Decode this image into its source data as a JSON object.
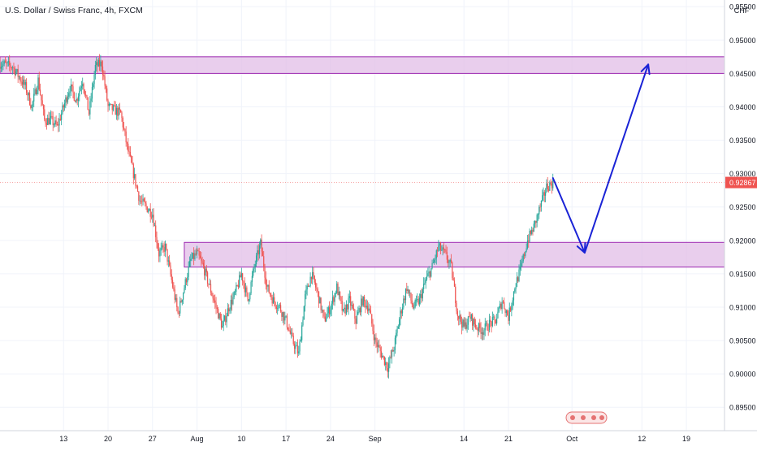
{
  "header": {
    "symbol_title": "U.S. Dollar / Swiss Franc, 4h, FXCM"
  },
  "axis": {
    "currency": "CHF"
  },
  "colors": {
    "up": "#26a69a",
    "down": "#ef5350",
    "zone_fill": "#e1bee7",
    "zone_border": "#9c27b0",
    "arrow": "#1a23d6",
    "last_price_bg": "#ef5350",
    "grid": "#f0f3fa",
    "axis_text": "#131722"
  },
  "chart_data": {
    "type": "candlestick",
    "title": "U.S. Dollar / Swiss Franc, 4h, FXCM",
    "ylim": [
      0.8915,
      0.956
    ],
    "y_ticks": [
      "0.95500",
      "0.95000",
      "0.94500",
      "0.94000",
      "0.93500",
      "0.93000",
      "0.92500",
      "0.92000",
      "0.91500",
      "0.91000",
      "0.90500",
      "0.90000",
      "0.89500"
    ],
    "y_tick_values": [
      0.955,
      0.95,
      0.945,
      0.94,
      0.935,
      0.93,
      0.925,
      0.92,
      0.915,
      0.91,
      0.905,
      0.9,
      0.895
    ],
    "x_ticks": [
      "13",
      "20",
      "27",
      "Aug",
      "10",
      "17",
      "24",
      "Sep",
      "14",
      "21",
      "Oct",
      "12",
      "19"
    ],
    "x_tick_dates": [
      "2020-07-13",
      "2020-07-20",
      "2020-07-27",
      "2020-08-03",
      "2020-08-10",
      "2020-08-17",
      "2020-08-24",
      "2020-08-31",
      "2020-09-14",
      "2020-09-21",
      "2020-10-01",
      "2020-10-12",
      "2020-10-19"
    ],
    "x_range": [
      "2020-07-03",
      "2020-10-25"
    ],
    "last_price": 0.92867,
    "last_price_label": "0.92867",
    "price_path": [
      [
        "2020-07-03",
        0.9465
      ],
      [
        "2020-07-05",
        0.946
      ],
      [
        "2020-07-07",
        0.943
      ],
      [
        "2020-07-08",
        0.94
      ],
      [
        "2020-07-09",
        0.944
      ],
      [
        "2020-07-10",
        0.938
      ],
      [
        "2020-07-11",
        0.938
      ],
      [
        "2020-07-12",
        0.937
      ],
      [
        "2020-07-14",
        0.943
      ],
      [
        "2020-07-15",
        0.941
      ],
      [
        "2020-07-16",
        0.944
      ],
      [
        "2020-07-17",
        0.939
      ],
      [
        "2020-07-18",
        0.946
      ],
      [
        "2020-07-19",
        0.9465
      ],
      [
        "2020-07-20",
        0.94
      ],
      [
        "2020-07-22",
        0.939
      ],
      [
        "2020-07-23",
        0.934
      ],
      [
        "2020-07-24",
        0.93
      ],
      [
        "2020-07-25",
        0.926
      ],
      [
        "2020-07-27",
        0.924
      ],
      [
        "2020-07-28",
        0.918
      ],
      [
        "2020-07-29",
        0.919
      ],
      [
        "2020-07-30",
        0.914
      ],
      [
        "2020-07-31",
        0.909
      ],
      [
        "2020-08-01",
        0.913
      ],
      [
        "2020-08-02",
        0.917
      ],
      [
        "2020-08-03",
        0.918
      ],
      [
        "2020-08-04",
        0.916
      ],
      [
        "2020-08-05",
        0.913
      ],
      [
        "2020-08-06",
        0.91
      ],
      [
        "2020-08-07",
        0.907
      ],
      [
        "2020-08-08",
        0.91
      ],
      [
        "2020-08-09",
        0.912
      ],
      [
        "2020-08-10",
        0.915
      ],
      [
        "2020-08-11",
        0.911
      ],
      [
        "2020-08-12",
        0.916
      ],
      [
        "2020-08-13",
        0.9195
      ],
      [
        "2020-08-14",
        0.913
      ],
      [
        "2020-08-15",
        0.911
      ],
      [
        "2020-08-16",
        0.91
      ],
      [
        "2020-08-17",
        0.908
      ],
      [
        "2020-08-18",
        0.905
      ],
      [
        "2020-08-19",
        0.903
      ],
      [
        "2020-08-20",
        0.9115
      ],
      [
        "2020-08-21",
        0.915
      ],
      [
        "2020-08-22",
        0.912
      ],
      [
        "2020-08-23",
        0.908
      ],
      [
        "2020-08-24",
        0.91
      ],
      [
        "2020-08-25",
        0.913
      ],
      [
        "2020-08-26",
        0.909
      ],
      [
        "2020-08-27",
        0.911
      ],
      [
        "2020-08-28",
        0.908
      ],
      [
        "2020-08-29",
        0.911
      ],
      [
        "2020-08-30",
        0.91
      ],
      [
        "2020-08-31",
        0.905
      ],
      [
        "2020-09-01",
        0.903
      ],
      [
        "2020-09-02",
        0.901
      ],
      [
        "2020-09-03",
        0.904
      ],
      [
        "2020-09-04",
        0.909
      ],
      [
        "2020-09-05",
        0.913
      ],
      [
        "2020-09-06",
        0.91
      ],
      [
        "2020-09-07",
        0.911
      ],
      [
        "2020-09-08",
        0.914
      ],
      [
        "2020-09-09",
        0.916
      ],
      [
        "2020-09-10",
        0.919
      ],
      [
        "2020-09-11",
        0.918
      ],
      [
        "2020-09-12",
        0.916
      ],
      [
        "2020-09-13",
        0.909
      ],
      [
        "2020-09-14",
        0.907
      ],
      [
        "2020-09-15",
        0.9085
      ],
      [
        "2020-09-16",
        0.907
      ],
      [
        "2020-09-17",
        0.9065
      ],
      [
        "2020-09-18",
        0.9075
      ],
      [
        "2020-09-19",
        0.908
      ],
      [
        "2020-09-20",
        0.911
      ],
      [
        "2020-09-21",
        0.9085
      ],
      [
        "2020-09-22",
        0.913
      ],
      [
        "2020-09-23",
        0.916
      ],
      [
        "2020-09-24",
        0.92
      ],
      [
        "2020-09-25",
        0.922
      ],
      [
        "2020-09-26",
        0.925
      ],
      [
        "2020-09-27",
        0.928
      ],
      [
        "2020-09-28",
        0.92867
      ]
    ],
    "zones": [
      {
        "from": "2020-07-03",
        "to": "2020-10-25",
        "low": 0.945,
        "high": 0.9475
      },
      {
        "from": "2020-08-01",
        "to": "2020-10-25",
        "low": 0.916,
        "high": 0.9197
      }
    ],
    "projection_path": [
      [
        "2020-09-28",
        0.92935
      ],
      [
        "2020-10-03",
        0.91815
      ],
      [
        "2020-10-13",
        0.94635
      ]
    ],
    "grid": true,
    "axis_position": "right"
  }
}
